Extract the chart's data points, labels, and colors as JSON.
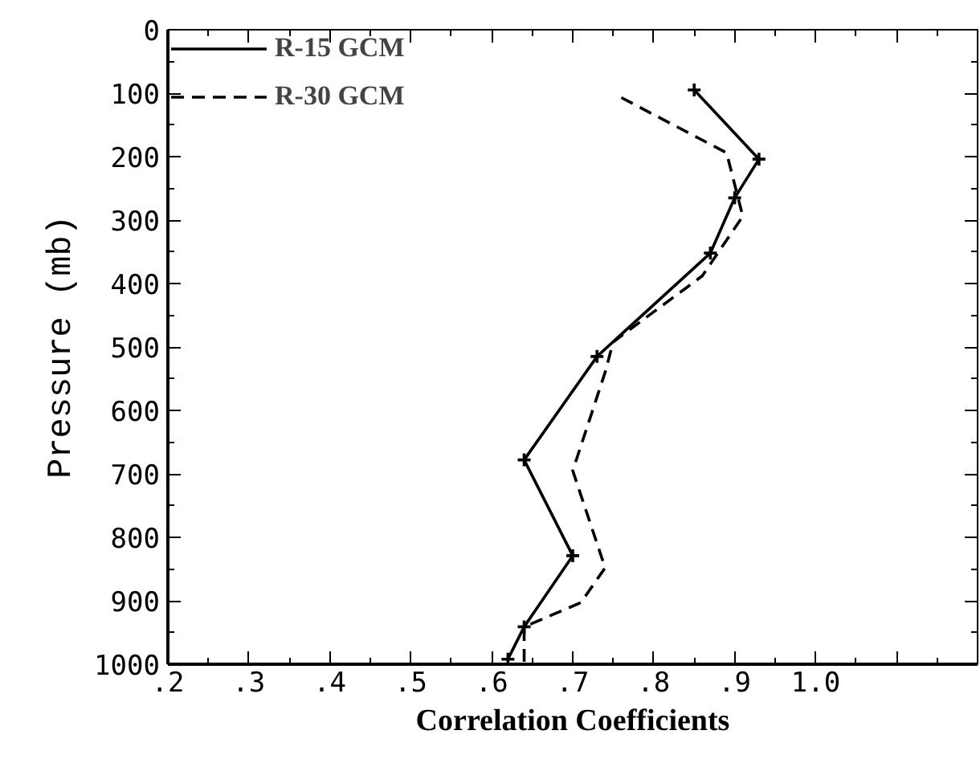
{
  "chart_data": {
    "type": "line",
    "xlabel": "Correlation Coefficients",
    "ylabel": "Pressure (mb)",
    "xlim": [
      0.2,
      1.2
    ],
    "ylim": [
      1000,
      0
    ],
    "xticks": [
      {
        "value": 0.2,
        "label": ".2"
      },
      {
        "value": 0.3,
        "label": ".3"
      },
      {
        "value": 0.4,
        "label": ".4"
      },
      {
        "value": 0.5,
        "label": ".5"
      },
      {
        "value": 0.6,
        "label": ".6"
      },
      {
        "value": 0.7,
        "label": ".7"
      },
      {
        "value": 0.8,
        "label": ".8"
      },
      {
        "value": 0.9,
        "label": ".9"
      },
      {
        "value": 1.0,
        "label": "1.0"
      },
      {
        "value": 1.1,
        "label": null
      }
    ],
    "yticks": [
      0,
      100,
      200,
      300,
      400,
      500,
      600,
      700,
      800,
      900,
      1000
    ],
    "grid": false,
    "legend": "top left",
    "orientation": "horizontal",
    "series": [
      {
        "name": "R-15 GCM",
        "color": "#000000",
        "line_style": "solid",
        "marker": "cross",
        "values": [
          0.85,
          0.93,
          0.9,
          0.87,
          0.73,
          0.64,
          0.7,
          0.64,
          0.62
        ],
        "x": [
          95,
          204,
          265,
          352,
          515,
          678,
          829,
          941,
          992
        ]
      },
      {
        "name": "R-30 GCM",
        "color": "#000000",
        "line_style": "dashed",
        "marker": "none",
        "values": [
          0.76,
          0.89,
          0.91,
          0.86,
          0.75,
          0.74,
          0.7,
          0.74,
          0.71,
          0.64,
          0.64
        ],
        "x": [
          107,
          194,
          294,
          388,
          492,
          540,
          695,
          848,
          903,
          941,
          1000
        ]
      }
    ]
  }
}
